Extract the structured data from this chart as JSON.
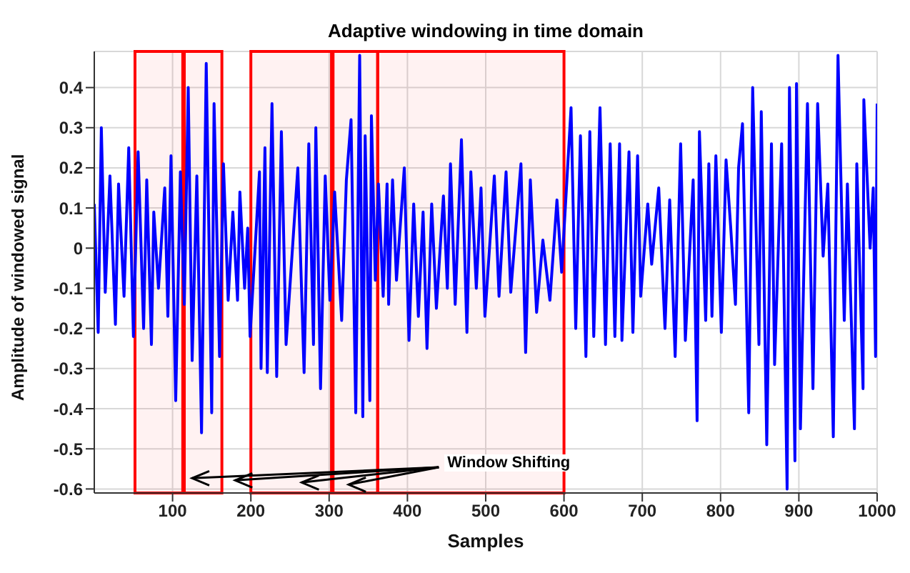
{
  "chart_data": {
    "type": "line",
    "title": "Adaptive windowing in time domain",
    "xlabel": "Samples",
    "ylabel": "Amplitude of windowed signal",
    "annotations": [
      "Window Shifting"
    ],
    "x": [
      0,
      5,
      9,
      14,
      20,
      27,
      31,
      38,
      44,
      50,
      56,
      63,
      67,
      73,
      76,
      82,
      90,
      94,
      98,
      104,
      110,
      115,
      120,
      125,
      131,
      137,
      143,
      150,
      153,
      160,
      165,
      171,
      177,
      183,
      186,
      192,
      196,
      199,
      211,
      213,
      218,
      221,
      227,
      233,
      239,
      245,
      260,
      268,
      274,
      280,
      283,
      289,
      295,
      301,
      307,
      316,
      322,
      328,
      334,
      339,
      343,
      346,
      352,
      354,
      359,
      363,
      369,
      374,
      376,
      381,
      386,
      396,
      402,
      408,
      414,
      420,
      425,
      431,
      437,
      446,
      451,
      455,
      461,
      469,
      476,
      481,
      488,
      494,
      499,
      511,
      517,
      526,
      532,
      545,
      551,
      557,
      565,
      573,
      582,
      591,
      597,
      609,
      615,
      621,
      628,
      633,
      638,
      646,
      653,
      659,
      665,
      671,
      674,
      683,
      688,
      694,
      698,
      707,
      712,
      721,
      729,
      735,
      742,
      749,
      755,
      765,
      770,
      773,
      781,
      785,
      789,
      794,
      801,
      807,
      813,
      819,
      823,
      828,
      836,
      841,
      849,
      852,
      859,
      865,
      869,
      878,
      885,
      888,
      895,
      897,
      902,
      911,
      918,
      924,
      931,
      937,
      944,
      950,
      958,
      962,
      971,
      974,
      982,
      983,
      991,
      995,
      998,
      1000
    ],
    "series": [
      {
        "color": "#0000ff",
        "values": [
          0.11,
          -0.21,
          0.3,
          -0.11,
          0.18,
          -0.19,
          0.16,
          -0.12,
          0.25,
          -0.22,
          0.24,
          -0.2,
          0.17,
          -0.24,
          0.09,
          -0.1,
          0.15,
          -0.17,
          0.23,
          -0.38,
          0.19,
          -0.14,
          0.4,
          -0.28,
          0.18,
          -0.46,
          0.46,
          -0.41,
          0.36,
          -0.27,
          0.21,
          -0.13,
          0.09,
          -0.13,
          0.14,
          -0.1,
          0.05,
          -0.22,
          0.19,
          -0.3,
          0.25,
          -0.31,
          0.36,
          -0.32,
          0.29,
          -0.24,
          0.2,
          -0.31,
          0.26,
          -0.24,
          0.3,
          -0.35,
          0.18,
          -0.13,
          0.14,
          -0.18,
          0.17,
          0.32,
          -0.41,
          0.48,
          -0.42,
          0.28,
          -0.38,
          0.33,
          -0.08,
          0.16,
          -0.12,
          0.16,
          -0.14,
          0.17,
          -0.08,
          0.2,
          -0.23,
          0.11,
          -0.17,
          0.09,
          -0.25,
          0.11,
          -0.15,
          0.13,
          -0.1,
          0.21,
          -0.14,
          0.27,
          -0.21,
          0.19,
          -0.1,
          0.15,
          -0.17,
          0.18,
          -0.12,
          0.19,
          -0.11,
          0.21,
          -0.26,
          0.17,
          -0.16,
          0.02,
          -0.13,
          0.12,
          -0.06,
          0.35,
          -0.2,
          0.28,
          -0.27,
          0.29,
          -0.22,
          0.35,
          -0.24,
          0.26,
          -0.22,
          0.26,
          -0.23,
          0.24,
          -0.21,
          0.23,
          -0.12,
          0.11,
          -0.04,
          0.15,
          -0.2,
          0.12,
          -0.27,
          0.26,
          -0.23,
          0.17,
          -0.43,
          0.29,
          -0.18,
          0.21,
          -0.17,
          0.23,
          -0.21,
          0.22,
          0.05,
          -0.14,
          0.2,
          0.31,
          -0.41,
          0.4,
          -0.24,
          0.34,
          -0.49,
          0.26,
          -0.29,
          0.26,
          -0.6,
          0.4,
          -0.53,
          0.41,
          -0.45,
          0.36,
          -0.35,
          0.36,
          -0.02,
          0.16,
          -0.47,
          0.48,
          -0.18,
          0.16,
          -0.45,
          0.21,
          -0.35,
          0.37,
          0.0,
          0.15,
          -0.27,
          0.36
        ]
      }
    ],
    "xlim": [
      0,
      1000
    ],
    "xticks": [
      100,
      200,
      300,
      400,
      500,
      600,
      700,
      800,
      900,
      1000
    ],
    "ylim": [
      -0.61,
      0.49
    ],
    "yticks": [
      -0.6,
      -0.5,
      -0.4,
      -0.3,
      -0.2,
      -0.1,
      0,
      0.1,
      0.2,
      0.3,
      0.4
    ],
    "grid": true,
    "legend": false,
    "line_style": "solid",
    "bands": [
      {
        "axis": "x",
        "from": 52,
        "to": 113,
        "color": "#ff0000"
      },
      {
        "axis": "x",
        "from": 115,
        "to": 163,
        "color": "#ff0000"
      },
      {
        "axis": "x",
        "from": 200,
        "to": 303,
        "color": "#ff0000"
      },
      {
        "axis": "x",
        "from": 305,
        "to": 362,
        "color": "#ff0000"
      },
      {
        "axis": "x",
        "from": 362,
        "to": 600,
        "color": "#ff0000"
      }
    ]
  }
}
